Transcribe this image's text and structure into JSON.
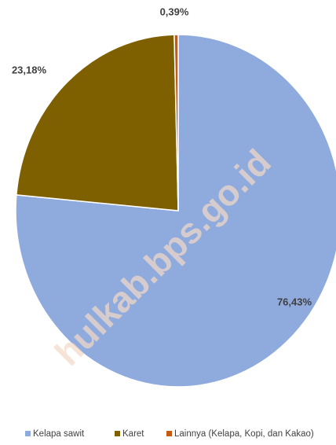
{
  "chart_data": {
    "type": "pie",
    "categories": [
      "Kelapa sawit",
      "Karet",
      "Lainnya (Kelapa, Kopi, dan Kakao)"
    ],
    "values": [
      76.43,
      23.18,
      0.39
    ],
    "value_labels": [
      "76,43%",
      "23,18%",
      "0,39%"
    ],
    "colors": [
      "#8faadc",
      "#7f6000",
      "#c55a11"
    ],
    "legend": "bottom",
    "watermark": "hulkab.bps.go.id"
  }
}
